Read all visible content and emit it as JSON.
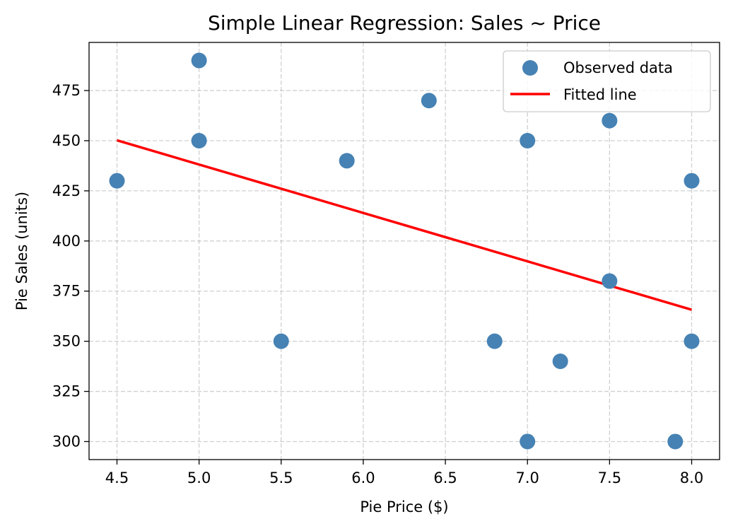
{
  "chart_data": {
    "type": "scatter",
    "title": "Simple Linear Regression: Sales ~ Price",
    "xlabel": "Pie Price ($)",
    "ylabel": "Pie Sales (units)",
    "xlim": [
      4.33,
      8.17
    ],
    "ylim": [
      291,
      499
    ],
    "xticks": [
      4.5,
      5.0,
      5.5,
      6.0,
      6.5,
      7.0,
      7.5,
      8.0
    ],
    "xtick_labels": [
      "4.5",
      "5.0",
      "5.5",
      "6.0",
      "6.5",
      "7.0",
      "7.5",
      "8.0"
    ],
    "yticks": [
      300,
      325,
      350,
      375,
      400,
      425,
      450,
      475
    ],
    "ytick_labels": [
      "300",
      "325",
      "350",
      "375",
      "400",
      "425",
      "450",
      "475"
    ],
    "grid": true,
    "legend_position": "top-right",
    "series": [
      {
        "name": "Observed data",
        "kind": "scatter",
        "color": "#4682b4",
        "points": [
          {
            "x": 5.5,
            "y": 350
          },
          {
            "x": 7.5,
            "y": 460
          },
          {
            "x": 8.0,
            "y": 350
          },
          {
            "x": 8.0,
            "y": 430
          },
          {
            "x": 6.8,
            "y": 350
          },
          {
            "x": 7.5,
            "y": 380
          },
          {
            "x": 4.5,
            "y": 430
          },
          {
            "x": 6.4,
            "y": 470
          },
          {
            "x": 7.0,
            "y": 450
          },
          {
            "x": 5.0,
            "y": 490
          },
          {
            "x": 7.2,
            "y": 340
          },
          {
            "x": 7.9,
            "y": 300
          },
          {
            "x": 5.9,
            "y": 440
          },
          {
            "x": 5.0,
            "y": 450
          },
          {
            "x": 7.0,
            "y": 300
          }
        ]
      },
      {
        "name": "Fitted line",
        "kind": "line",
        "color": "#ff0000",
        "points": [
          {
            "x": 4.5,
            "y": 450.2
          },
          {
            "x": 8.0,
            "y": 365.7
          }
        ]
      }
    ]
  }
}
